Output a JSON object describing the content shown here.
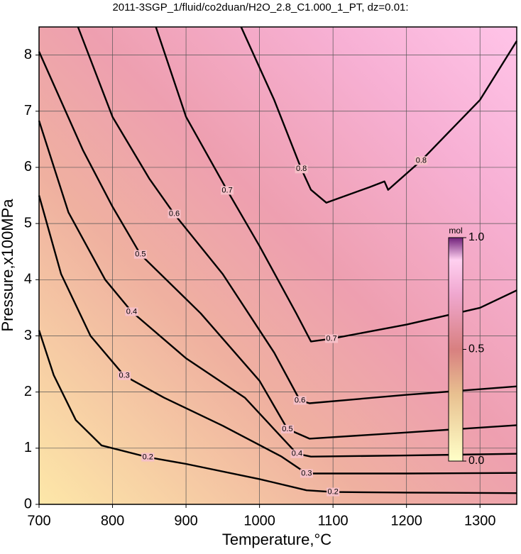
{
  "chart_data": {
    "type": "contour",
    "title": "2011-3SGP_1/fluid/co2duan/H2O_2.8_C1.000_1_PT, dz=0.01:",
    "x_label": "Temperature,°C",
    "y_label": "Pressure,x100MPa",
    "xlim": [
      700,
      1350
    ],
    "ylim": [
      0,
      8.5
    ],
    "xticks": [
      700,
      800,
      900,
      1000,
      1100,
      1200,
      1300
    ],
    "yticks": [
      0,
      1,
      2,
      3,
      4,
      5,
      6,
      7,
      8
    ],
    "grid": true,
    "contours": [
      {
        "level": 0.2,
        "x": [
          700,
          720,
          750,
          785,
          848,
          900,
          1000,
          1064,
          1100,
          1200,
          1350
        ],
        "y": [
          3.1,
          2.3,
          1.5,
          1.05,
          0.84,
          0.72,
          0.45,
          0.25,
          0.22,
          0.21,
          0.2
        ]
      },
      {
        "level": 0.3,
        "x": [
          700,
          730,
          770,
          816,
          870,
          950,
          1030,
          1064,
          1100,
          1200,
          1350
        ],
        "y": [
          5.5,
          4.1,
          3.0,
          2.29,
          1.9,
          1.4,
          0.85,
          0.55,
          0.55,
          0.55,
          0.56
        ]
      },
      {
        "level": 0.4,
        "x": [
          700,
          740,
          790,
          826,
          900,
          980,
          1051,
          1070,
          1200,
          1350
        ],
        "y": [
          6.83,
          5.2,
          4.0,
          3.43,
          2.6,
          1.9,
          0.9,
          0.85,
          0.87,
          0.9
        ]
      },
      {
        "level": 0.5,
        "x": [
          700,
          760,
          800,
          838,
          920,
          1000,
          1038,
          1068,
          1200,
          1350
        ],
        "y": [
          8.06,
          6.3,
          5.3,
          4.45,
          3.4,
          2.2,
          1.34,
          1.17,
          1.28,
          1.41
        ]
      },
      {
        "level": 0.6,
        "x": [
          753,
          800,
          850,
          884,
          950,
          1020,
          1055,
          1068,
          1200,
          1350
        ],
        "y": [
          8.5,
          6.9,
          5.8,
          5.17,
          4.1,
          2.7,
          1.85,
          1.8,
          1.95,
          2.1
        ]
      },
      {
        "level": 0.7,
        "x": [
          859,
          900,
          956,
          1000,
          1050,
          1070,
          1098,
          1200,
          1300,
          1350
        ],
        "y": [
          8.5,
          6.9,
          5.59,
          4.6,
          3.4,
          2.9,
          2.95,
          3.2,
          3.5,
          3.81
        ]
      },
      {
        "level": 0.8,
        "x": [
          975,
          1020,
          1057,
          1070,
          1091,
          1150,
          1170,
          1175,
          1220,
          1300,
          1350
        ],
        "y": [
          8.5,
          7.2,
          5.97,
          5.6,
          5.37,
          5.65,
          5.75,
          5.6,
          6.12,
          7.2,
          8.25
        ]
      }
    ],
    "colorbar": {
      "label": "mol",
      "lim": [
        0,
        1
      ],
      "ticks": [
        {
          "value": 0,
          "label": "0.0"
        },
        {
          "value": 0.5,
          "label": "0.5"
        },
        {
          "value": 1,
          "label": "1.0"
        }
      ]
    }
  }
}
